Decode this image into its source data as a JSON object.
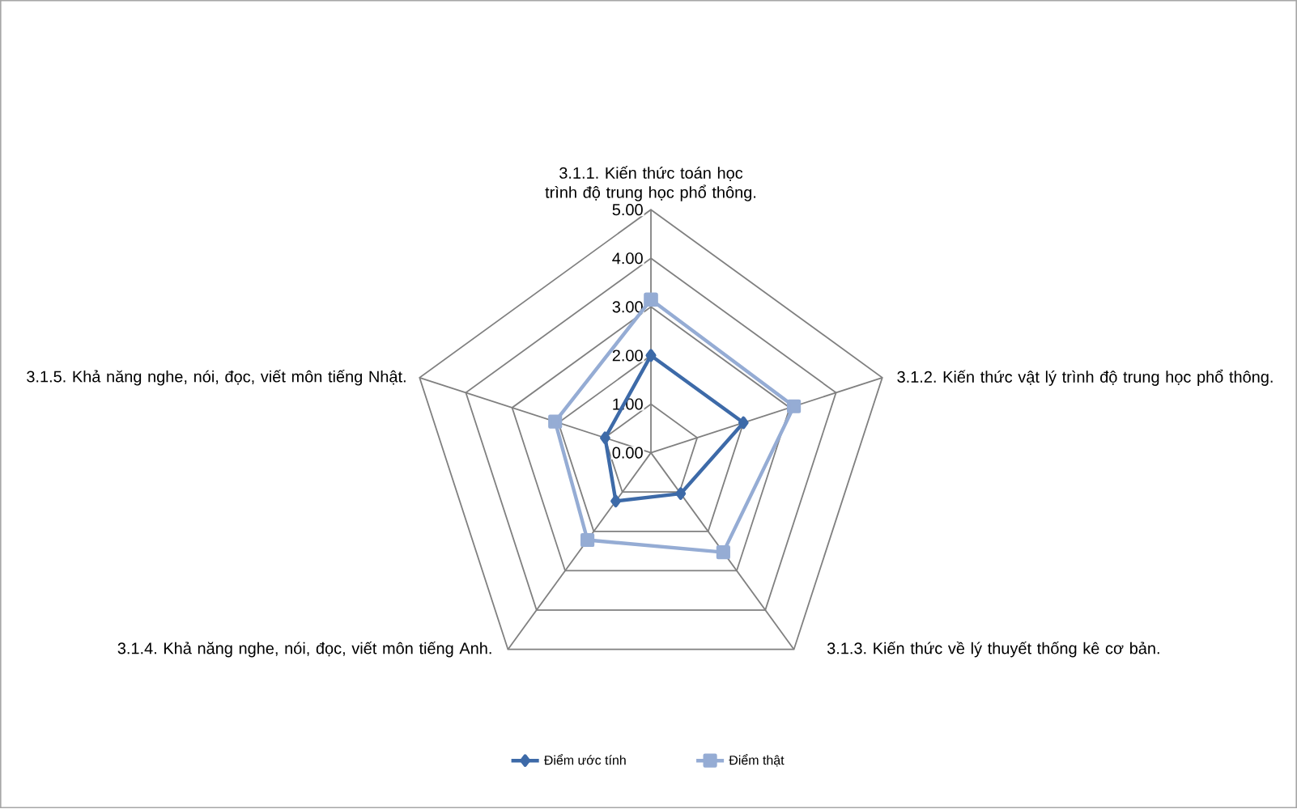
{
  "chart_data": {
    "type": "radar",
    "categories": [
      "3.1.1. Kiến thức toán học trình độ trung học phổ thông.",
      "3.1.2. Kiến thức vật lý trình độ trung học phổ thông.",
      "3.1.3. Kiến thức về lý thuyết thống kê cơ bản.",
      "3.1.4. Khả năng nghe, nói, đọc, viết môn tiếng Anh.",
      "3.1.5. Khả năng nghe, nói, đọc, viết môn tiếng Nhật."
    ],
    "series": [
      {
        "name": "Điểm ước tính",
        "color": "#3d6aa8",
        "marker": "diamond",
        "values": [
          2.0,
          2.0,
          1.04,
          1.23,
          0.99
        ]
      },
      {
        "name": "Điểm thật",
        "color": "#95acd4",
        "marker": "square",
        "values": [
          3.15,
          3.09,
          2.53,
          2.22,
          2.07
        ]
      }
    ],
    "ylim": [
      0,
      5
    ],
    "yticks": [
      {
        "value": 0,
        "label": "0.00"
      },
      {
        "value": 1,
        "label": "1.00"
      },
      {
        "value": 2,
        "label": "2.00"
      },
      {
        "value": 3,
        "label": "3.00"
      },
      {
        "value": 4,
        "label": "4.00"
      },
      {
        "value": 5,
        "label": "5.00"
      }
    ],
    "grid": true,
    "legend": "bottom"
  }
}
